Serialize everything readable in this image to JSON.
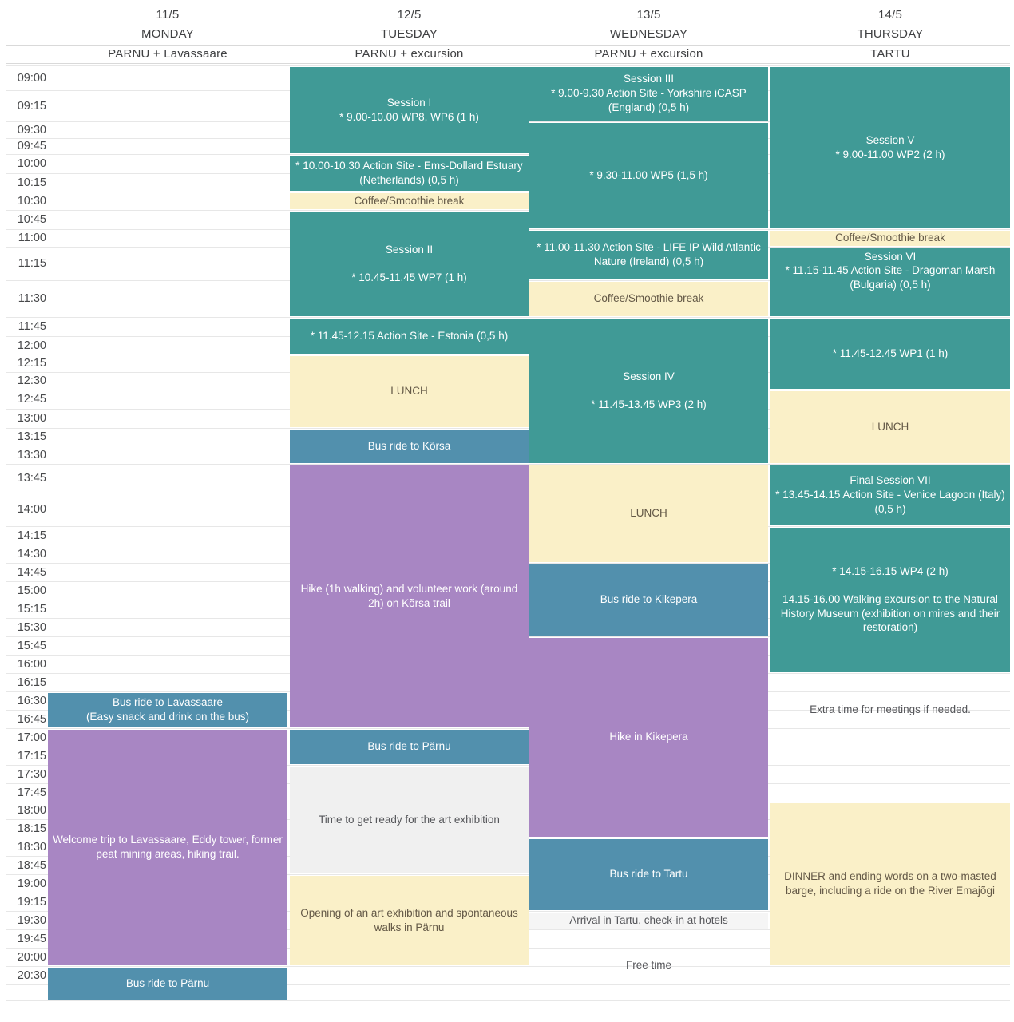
{
  "header": {
    "columns": [
      {
        "date": "11/5",
        "day": "MONDAY",
        "location": "PARNU + Lavassaare"
      },
      {
        "date": "12/5",
        "day": "TUESDAY",
        "location": "PARNU + excursion"
      },
      {
        "date": "13/5",
        "day": "WEDNESDAY",
        "location": "PARNU + excursion"
      },
      {
        "date": "14/5",
        "day": "THURSDAY",
        "location": "TARTU"
      }
    ]
  },
  "time_axis": [
    "09:00",
    "09:15",
    "09:30",
    "09:45",
    "10:00",
    "10:15",
    "10:30",
    "10:45",
    "11:00",
    "11:15",
    "11:30",
    "11:45",
    "12:00",
    "12:15",
    "12:30",
    "12:45",
    "13:00",
    "13:15",
    "13:30",
    "13:45",
    "14:00",
    "14:15",
    "14:30",
    "14:45",
    "15:00",
    "15:15",
    "15:30",
    "15:45",
    "16:00",
    "16:15",
    "16:30",
    "16:45",
    "17:00",
    "17:15",
    "17:30",
    "17:45",
    "18:00",
    "18:15",
    "18:30",
    "18:45",
    "19:00",
    "19:15",
    "19:30",
    "19:45",
    "20:00",
    "20:30"
  ],
  "colors": {
    "session": "#409A96",
    "break": "#FAF0C8",
    "bus": "#5290AD",
    "hike": "#A886C3",
    "prep": "#F0F0F0",
    "note": "#F5F5F5",
    "break_text": "#635846",
    "gray_text": "#55565A"
  },
  "events": [
    {
      "day": 0,
      "start": "16:30",
      "end": "17:00",
      "type": "bus",
      "lines": [
        "Bus ride to Lavassaare",
        "(Easy snack and drink on the bus)"
      ]
    },
    {
      "day": 0,
      "start": "17:00",
      "end": "20:30",
      "type": "hike",
      "lines": [
        "Welcome trip to Lavassaare, Eddy tower, former peat mining areas, hiking trail."
      ]
    },
    {
      "day": 0,
      "start": "20:30",
      "end": "END",
      "type": "bus",
      "lines": [
        "Bus ride to Pärnu"
      ]
    },
    {
      "day": 1,
      "start": "09:00",
      "end": "10:00",
      "type": "session",
      "lines": [
        "Session I",
        "* 9.00-10.00 WP8, WP6 (1 h)"
      ]
    },
    {
      "day": 1,
      "start": "10:00",
      "end": "10:30",
      "type": "session",
      "lines": [
        "* 10.00-10.30 Action Site - Ems-Dollard Estuary (Netherlands) (0,5 h)"
      ]
    },
    {
      "day": 1,
      "start": "10:30",
      "end": "10:45",
      "type": "break",
      "lines": [
        "Coffee/Smoothie break"
      ]
    },
    {
      "day": 1,
      "start": "10:45",
      "end": "11:45",
      "type": "session",
      "lines": [
        "Session II",
        "",
        "* 10.45-11.45 WP7 (1 h)"
      ]
    },
    {
      "day": 1,
      "start": "11:45",
      "end": "12:15",
      "type": "session",
      "lines": [
        "* 11.45-12.15 Action Site - Estonia (0,5 h)"
      ]
    },
    {
      "day": 1,
      "start": "12:15",
      "end": "13:15",
      "type": "break",
      "lines": [
        "LUNCH"
      ]
    },
    {
      "day": 1,
      "start": "13:15",
      "end": "13:45",
      "type": "bus",
      "lines": [
        "Bus ride to Kõrsa"
      ]
    },
    {
      "day": 1,
      "start": "13:45",
      "end": "17:00",
      "type": "hike",
      "lines": [
        "Hike (1h walking) and volunteer work (around 2h) on Kõrsa trail"
      ]
    },
    {
      "day": 1,
      "start": "17:00",
      "end": "17:30",
      "type": "bus",
      "lines": [
        "Bus ride to Pärnu"
      ]
    },
    {
      "day": 1,
      "start": "17:30",
      "end": "19:00",
      "type": "prep",
      "lines": [
        "Time to get ready for the art exhibition"
      ]
    },
    {
      "day": 1,
      "start": "19:00",
      "end": "20:30",
      "type": "break",
      "lines": [
        "Opening of an art exhibition and spontaneous walks in Pärnu"
      ]
    },
    {
      "day": 2,
      "start": "09:00",
      "end": "09:30",
      "type": "session",
      "lines": [
        "Session III",
        "* 9.00-9.30 Action Site - Yorkshire iCASP (England) (0,5 h)"
      ]
    },
    {
      "day": 2,
      "start": "09:30",
      "end": "11:00",
      "type": "session",
      "lines": [
        "* 9.30-11.00 WP5 (1,5 h)"
      ]
    },
    {
      "day": 2,
      "start": "11:00",
      "end": "11:30",
      "type": "session",
      "lines": [
        "* 11.00-11.30 Action Site - LIFE IP Wild Atlantic Nature (Ireland) (0,5 h)"
      ]
    },
    {
      "day": 2,
      "start": "11:30",
      "end": "11:45",
      "type": "break",
      "lines": [
        "Coffee/Smoothie break"
      ]
    },
    {
      "day": 2,
      "start": "11:45",
      "end": "13:45",
      "type": "session",
      "lines": [
        "Session IV",
        "",
        "* 11.45-13.45 WP3 (2 h)"
      ]
    },
    {
      "day": 2,
      "start": "13:45",
      "end": "14:45",
      "type": "break",
      "lines": [
        "LUNCH"
      ]
    },
    {
      "day": 2,
      "start": "14:45",
      "end": "15:45",
      "type": "bus",
      "lines": [
        "Bus ride to Kikepera"
      ]
    },
    {
      "day": 2,
      "start": "15:45",
      "end": "18:30",
      "type": "hike",
      "lines": [
        "Hike in Kikepera"
      ]
    },
    {
      "day": 2,
      "start": "18:30",
      "end": "19:30",
      "type": "bus",
      "lines": [
        "Bus ride to Tartu"
      ]
    },
    {
      "day": 2,
      "start": "19:30",
      "end": "19:45",
      "type": "note",
      "lines": [
        "Arrival in Tartu, check-in at hotels"
      ]
    },
    {
      "day": 2,
      "start": "19:45",
      "end": "END",
      "type": "plain",
      "lines": [
        "Free time"
      ]
    },
    {
      "day": 3,
      "start": "09:00",
      "end": "11:00",
      "type": "session",
      "lines": [
        "Session V",
        "* 9.00-11.00 WP2 (2 h)"
      ]
    },
    {
      "day": 3,
      "start": "11:00",
      "end": "11:15",
      "type": "break",
      "lines": [
        "Coffee/Smoothie break"
      ]
    },
    {
      "day": 3,
      "start": "11:15",
      "end": "11:45",
      "type": "session",
      "align": "top",
      "lines": [
        "Session VI",
        "* 11.15-11.45 Action Site - Dragoman Marsh (Bulgaria) (0,5 h)"
      ]
    },
    {
      "day": 3,
      "start": "11:45",
      "end": "12:45",
      "type": "session",
      "lines": [
        "* 11.45-12.45 WP1 (1 h)"
      ]
    },
    {
      "day": 3,
      "start": "12:45",
      "end": "13:45",
      "type": "break",
      "lines": [
        "LUNCH"
      ]
    },
    {
      "day": 3,
      "start": "13:45",
      "end": "14:15",
      "type": "session",
      "lines": [
        "Final Session VII",
        "* 13.45-14.15 Action Site - Venice Lagoon (Italy) (0,5 h)"
      ]
    },
    {
      "day": 3,
      "start": "14:15",
      "end": "16:15",
      "type": "session",
      "lines": [
        "* 14.15-16.15 WP4 (2 h)",
        "",
        "14.15-16.00 Walking excursion to the Natural History Museum (exhibition on mires and their restoration)"
      ]
    },
    {
      "day": 3,
      "start": "16:15",
      "end": "17:15",
      "type": "plain",
      "lines": [
        "Extra time for meetings if needed."
      ]
    },
    {
      "day": 3,
      "start": "18:00",
      "end": "20:30",
      "type": "break",
      "lines": [
        "DINNER and ending words on a two-masted barge, including a ride on the River Emajõgi"
      ]
    }
  ]
}
